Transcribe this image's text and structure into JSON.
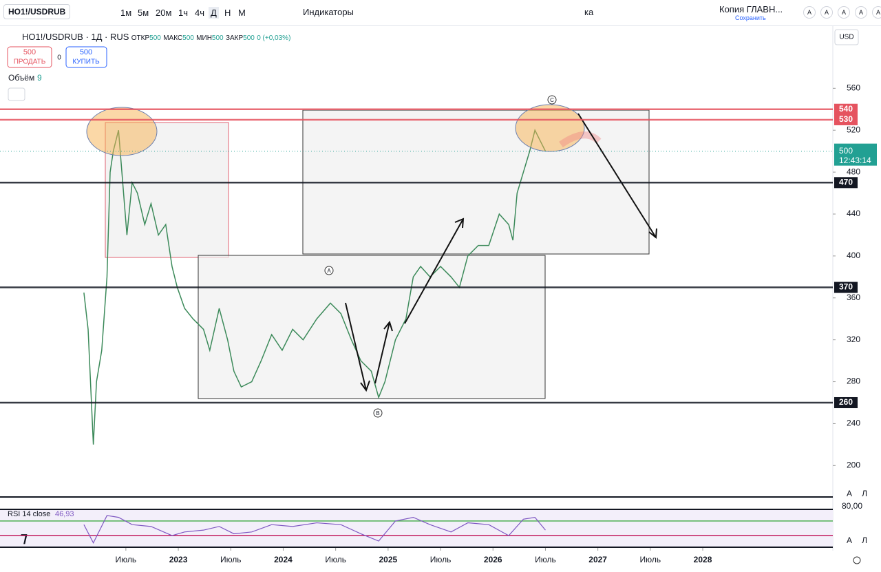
{
  "toolbar": {
    "symbol": "HO1!/USDRUB",
    "intervals": [
      "1м",
      "5м",
      "20м",
      "1ч",
      "4ч",
      "Д",
      "Н",
      "М"
    ],
    "indicators": "Индикаторы",
    "drawing_label": "ка",
    "layout_name": "Копия ГЛАВН...",
    "save": "Сохранить",
    "font_buttons": [
      "A",
      "A",
      "A",
      "A",
      "A"
    ]
  },
  "legend": {
    "title": "HO1!/USDRUB · 1Д · RUS",
    "ohlc": [
      {
        "label": "ОТКР",
        "value": 500
      },
      {
        "label": "МАКС",
        "value": 500
      },
      {
        "label": "МИН",
        "value": 500
      },
      {
        "label": "ЗАКР",
        "value": 500
      }
    ],
    "change": "0 (+0,03%)",
    "sell": {
      "price": 500,
      "label": "ПРОДАТЬ"
    },
    "spread": 0,
    "buy": {
      "price": 500,
      "label": "КУПИТЬ"
    },
    "volume_label": "Объём",
    "volume_value": 9
  },
  "currency": "USD",
  "pane_buttons": [
    "A",
    "Л"
  ],
  "annotations": [
    "A",
    "B",
    "C"
  ],
  "chart_data": {
    "type": "line",
    "color": "#3c8a5a",
    "x": [
      2022.1,
      2022.14,
      2022.19,
      2022.22,
      2022.27,
      2022.32,
      2022.35,
      2022.38,
      2022.43,
      2022.47,
      2022.51,
      2022.56,
      2022.61,
      2022.68,
      2022.74,
      2022.81,
      2022.88,
      2022.94,
      2022.99,
      2023.06,
      2023.14,
      2023.24,
      2023.3,
      2023.39,
      2023.47,
      2023.53,
      2023.6,
      2023.7,
      2023.79,
      2023.89,
      2023.99,
      2024.09,
      2024.19,
      2024.32,
      2024.45,
      2024.55,
      2024.65,
      2024.74,
      2024.84,
      2024.91,
      2024.97,
      2025.07,
      2025.17,
      2025.24,
      2025.31,
      2025.4,
      2025.5,
      2025.6,
      2025.68,
      2025.76,
      2025.86,
      2025.96,
      2026.06,
      2026.15,
      2026.19,
      2026.23,
      2026.29,
      2026.35,
      2026.4,
      2026.45,
      2026.5
    ],
    "values": [
      365,
      330,
      220,
      280,
      310,
      380,
      480,
      500,
      520,
      470,
      420,
      470,
      460,
      430,
      450,
      420,
      430,
      390,
      370,
      350,
      340,
      330,
      310,
      350,
      320,
      290,
      275,
      280,
      300,
      325,
      310,
      330,
      320,
      340,
      355,
      345,
      320,
      300,
      290,
      265,
      280,
      320,
      340,
      380,
      390,
      380,
      390,
      380,
      370,
      400,
      410,
      410,
      440,
      430,
      415,
      460,
      480,
      500,
      520,
      510,
      500
    ],
    "xlim": [
      2021.3,
      2029.24
    ],
    "xticks": [
      {
        "value": 2022.5,
        "label": "Июль"
      },
      2023,
      {
        "value": 2023.5,
        "label": "Июль"
      },
      2024,
      {
        "value": 2024.5,
        "label": "Июль"
      },
      2025,
      {
        "value": 2025.5,
        "label": "Июль"
      },
      2026,
      {
        "value": 2026.5,
        "label": "Июль"
      },
      2027,
      {
        "value": 2027.5,
        "label": "Июль"
      },
      2028
    ],
    "ylim": [
      170,
      618
    ],
    "yticks": [
      200,
      240,
      280,
      320,
      360,
      400,
      440,
      480,
      520,
      560
    ],
    "levels": [
      {
        "value": 540,
        "color": "#e5535f"
      },
      {
        "value": 530,
        "color": "#e5535f"
      },
      {
        "value": 470,
        "color": "#131722"
      },
      {
        "value": 370,
        "color": "#131722"
      },
      {
        "value": 260,
        "color": "#131722"
      }
    ],
    "last_price": {
      "value": 500,
      "countdown": "12:43:14",
      "color": "#22a093"
    },
    "rsi": {
      "title": "RSI 14 close",
      "value_label": "46,93",
      "upper_label": "80,00",
      "color": "#7e57c2",
      "ylim": [
        0,
        100
      ],
      "bands": [
        70,
        30
      ],
      "x": [
        2022.1,
        2022.19,
        2022.32,
        2022.43,
        2022.56,
        2022.74,
        2022.94,
        2023.06,
        2023.24,
        2023.39,
        2023.53,
        2023.7,
        2023.89,
        2024.09,
        2024.32,
        2024.55,
        2024.74,
        2024.91,
        2025.07,
        2025.24,
        2025.4,
        2025.6,
        2025.76,
        2025.96,
        2026.15,
        2026.29,
        2026.4,
        2026.5
      ],
      "values": [
        60,
        10,
        85,
        80,
        60,
        55,
        30,
        40,
        45,
        55,
        35,
        40,
        60,
        55,
        65,
        60,
        35,
        15,
        70,
        80,
        60,
        40,
        65,
        60,
        30,
        75,
        80,
        45
      ]
    }
  }
}
